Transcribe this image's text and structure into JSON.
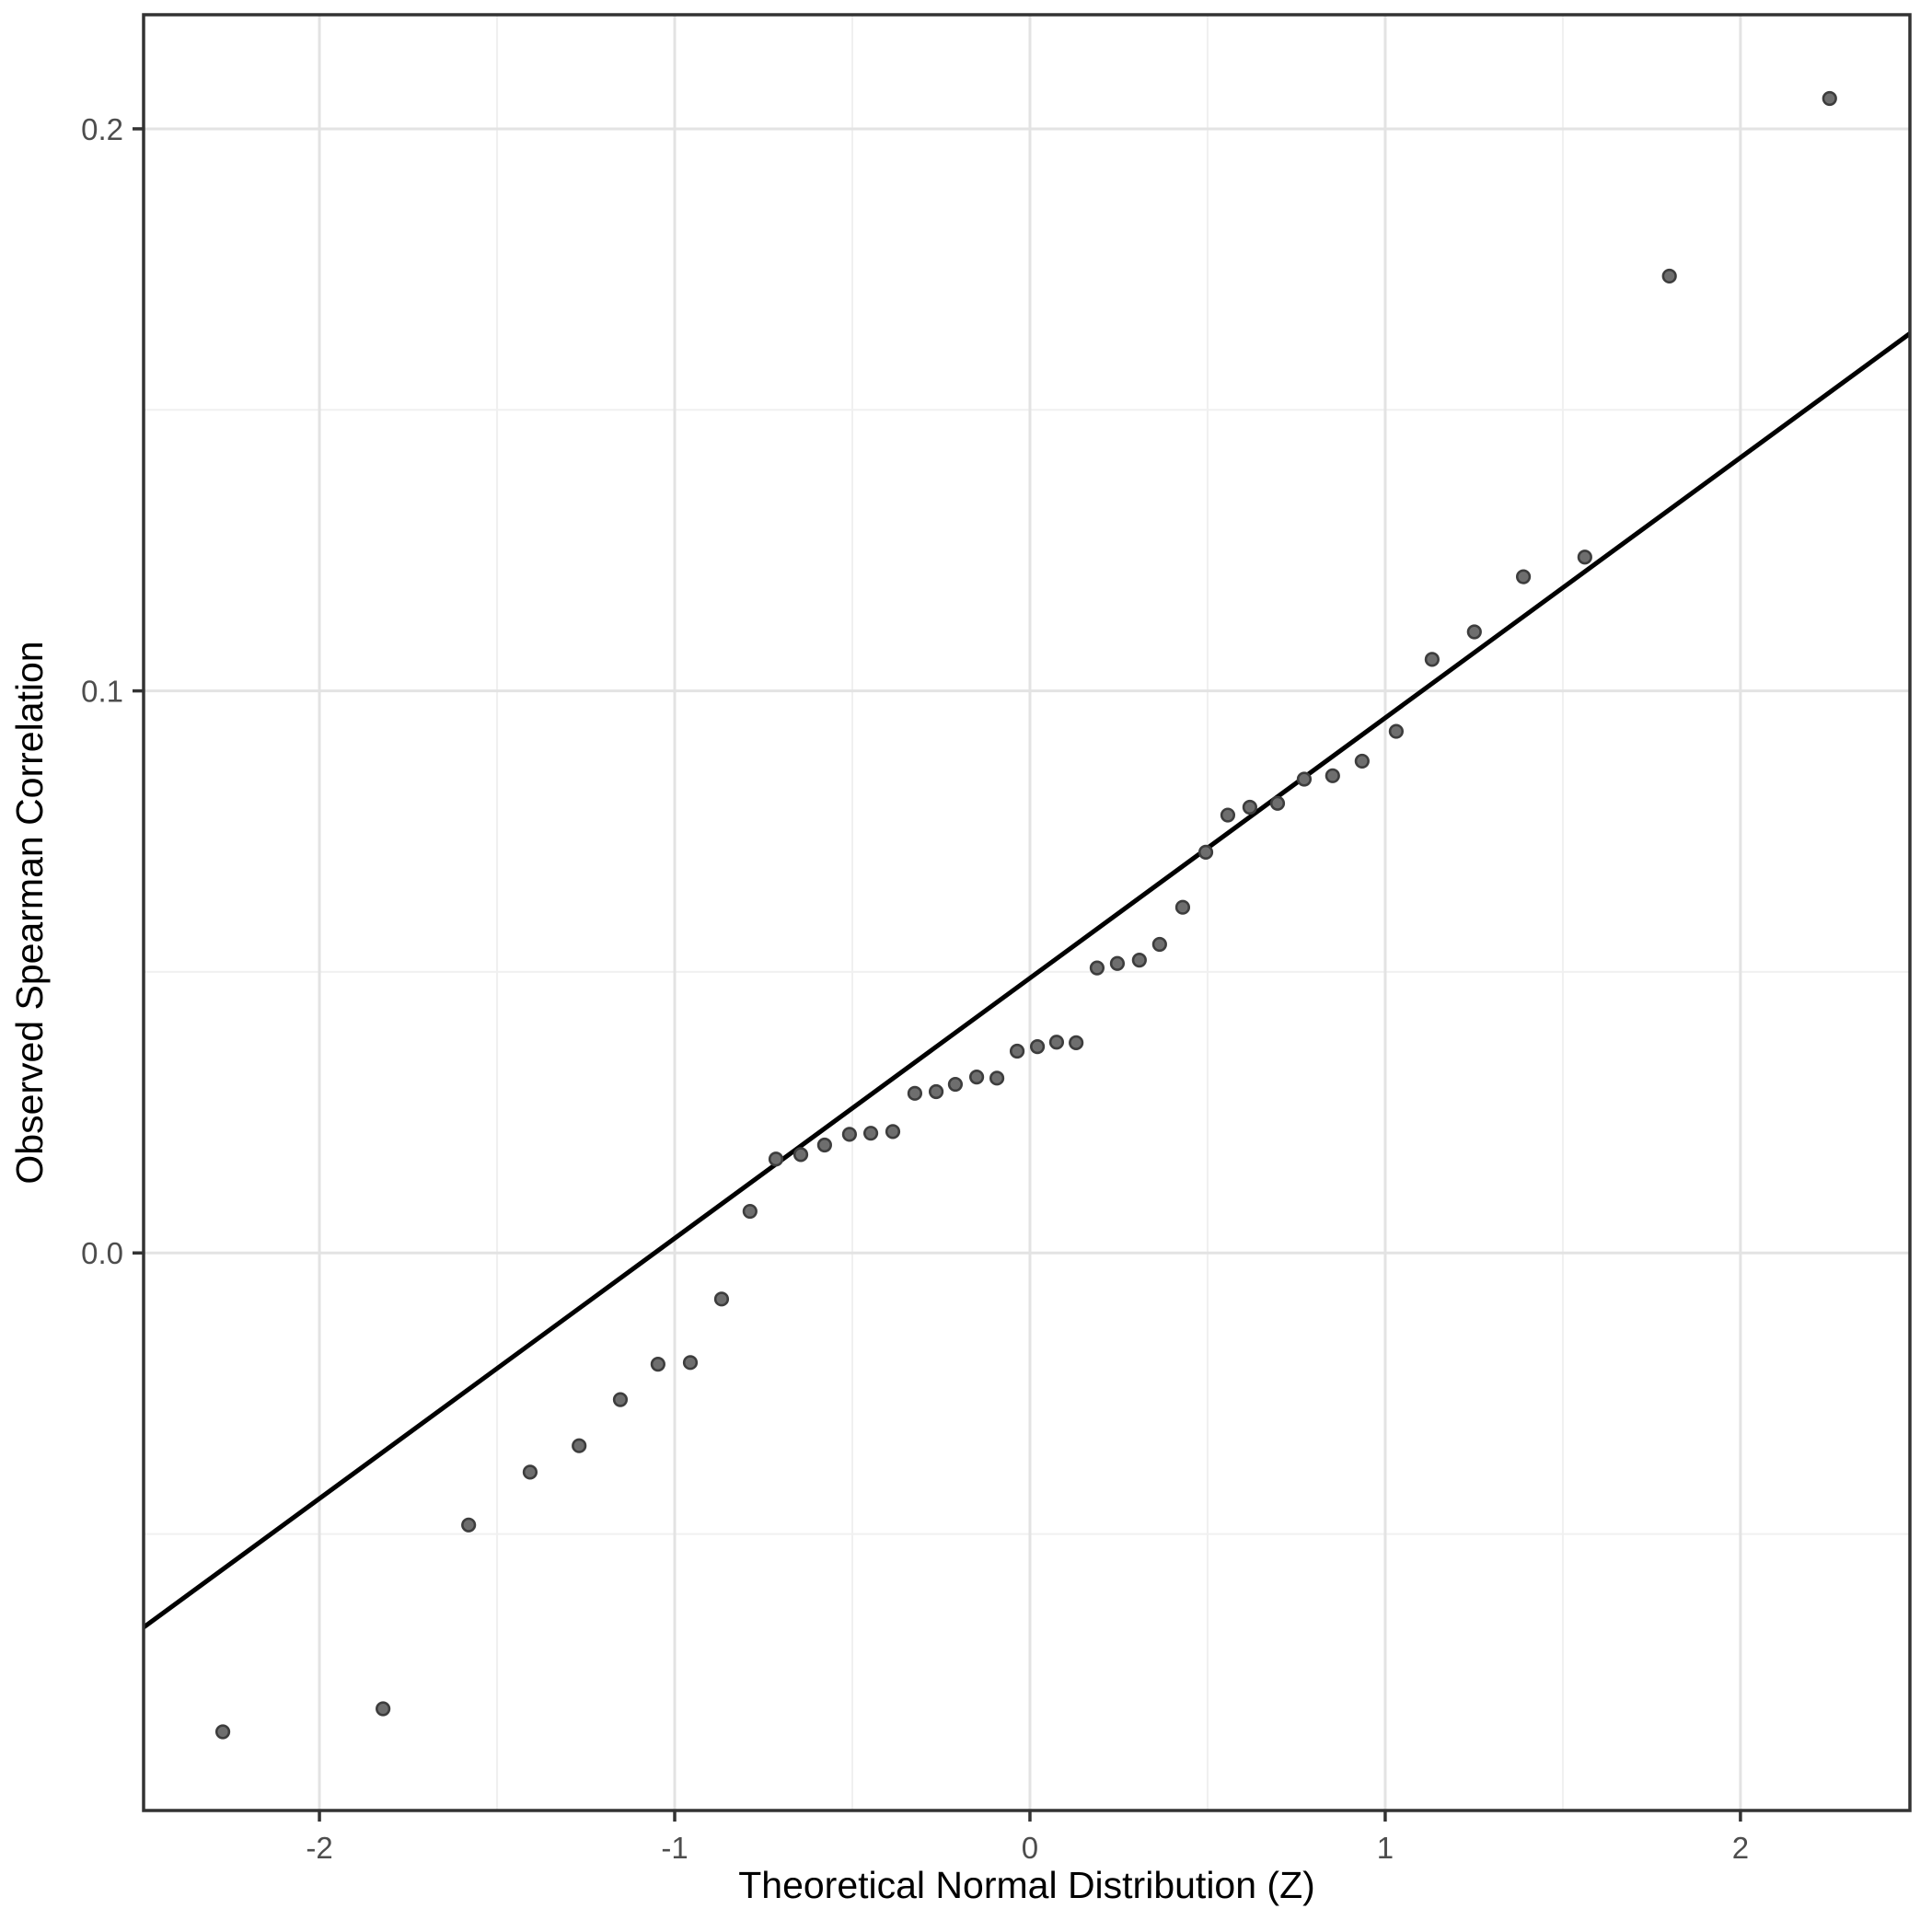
{
  "chart_data": {
    "type": "scatter",
    "title": "",
    "xlabel": "Theoretical Normal Distribution (Z)",
    "ylabel": "Observed Spearman Correlation",
    "xlim": [
      -2.495,
      2.477
    ],
    "ylim": [
      -0.0992,
      0.2203
    ],
    "x_ticks": [
      -2,
      -1,
      0,
      1,
      2
    ],
    "x_tick_labels": [
      "-2",
      "-1",
      "0",
      "1",
      "2"
    ],
    "y_ticks": [
      0.0,
      0.1,
      0.2
    ],
    "y_tick_labels": [
      "0.0",
      "0.1",
      "0.2"
    ],
    "x_minor_gridlines": [
      -1.5,
      -0.5,
      0.5,
      1.5
    ],
    "y_minor_gridlines": [
      -0.05,
      0.05,
      0.15
    ],
    "grid": true,
    "legend": "none",
    "reference_line": {
      "intercept": 0.0489,
      "slope": 0.0463
    },
    "points": [
      [
        -2.272,
        -0.0852
      ],
      [
        -1.821,
        -0.0811
      ],
      [
        -1.58,
        -0.0484
      ],
      [
        -1.407,
        -0.039
      ],
      [
        -1.269,
        -0.0343
      ],
      [
        -1.153,
        -0.0261
      ],
      [
        -1.047,
        -0.0198
      ],
      [
        -0.956,
        -0.0195
      ],
      [
        -0.868,
        -0.0082
      ],
      [
        -0.788,
        0.0074
      ],
      [
        -0.715,
        0.0167
      ],
      [
        -0.645,
        0.0175
      ],
      [
        -0.578,
        0.0192
      ],
      [
        -0.508,
        0.0211
      ],
      [
        -0.448,
        0.0213
      ],
      [
        -0.386,
        0.0216
      ],
      [
        -0.324,
        0.0284
      ],
      [
        -0.264,
        0.0287
      ],
      [
        -0.21,
        0.03
      ],
      [
        -0.15,
        0.0313
      ],
      [
        -0.093,
        0.0311
      ],
      [
        -0.036,
        0.0359
      ],
      [
        0.021,
        0.0367
      ],
      [
        0.075,
        0.0375
      ],
      [
        0.13,
        0.0374
      ],
      [
        0.189,
        0.0507
      ],
      [
        0.246,
        0.0515
      ],
      [
        0.308,
        0.0521
      ],
      [
        0.365,
        0.0549
      ],
      [
        0.43,
        0.0615
      ],
      [
        0.495,
        0.0713
      ],
      [
        0.557,
        0.0779
      ],
      [
        0.619,
        0.0793
      ],
      [
        0.697,
        0.08
      ],
      [
        0.772,
        0.0843
      ],
      [
        0.852,
        0.0849
      ],
      [
        0.935,
        0.0875
      ],
      [
        1.031,
        0.0928
      ],
      [
        1.132,
        0.1056
      ],
      [
        1.251,
        0.1105
      ],
      [
        1.389,
        0.1203
      ],
      [
        1.562,
        0.1238
      ],
      [
        1.8,
        0.1738
      ],
      [
        2.251,
        0.2054
      ]
    ],
    "colors": {
      "point_fill": "#6e6e6e",
      "point_stroke": "#3d3d3d",
      "reference_line": "#000000",
      "grid_major": "#e3e3e3",
      "grid_minor": "#f0f0f0",
      "panel_border": "#333333",
      "tick_mark": "#333333",
      "tick_label": "#4d4d4d",
      "axis_title": "#000000",
      "background": "#ffffff"
    }
  }
}
